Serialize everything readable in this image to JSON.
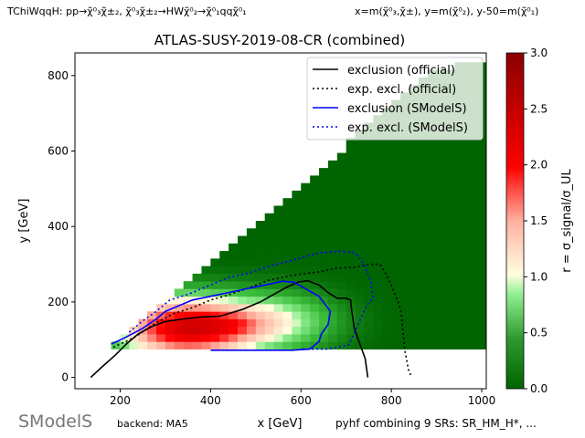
{
  "header": {
    "process_label": "TChiWqqH: pp→χ̃⁰₃χ̃±₂, χ̃⁰₃χ̃±₂→HWχ̃⁰₂→χ̃⁰₁qqχ̃⁰₁",
    "mass_definition": "x=m(χ̃⁰₃,χ̃±), y=m(χ̃⁰₂), y-50=m(χ̃⁰₁)"
  },
  "footer": {
    "logo_text": "SModelS",
    "backend": "backend: MA5",
    "combination": "pyhf combining 9 SRs: SR_HM_H*, ..."
  },
  "chart_data": {
    "type": "heatmap",
    "title": "ATLAS-SUSY-2019-08-CR (combined)",
    "xlabel": "x [GeV]",
    "ylabel": "y [GeV]",
    "xlim": [
      100,
      1010
    ],
    "ylim": [
      -30,
      860
    ],
    "xticks": [
      200,
      400,
      600,
      800,
      1000
    ],
    "yticks": [
      0,
      200,
      400,
      600,
      800
    ],
    "colorbar": {
      "label": "r = σ_signal/σ_UL",
      "range": [
        0.0,
        3.0
      ],
      "ticks": [
        "0.0",
        "0.5",
        "1.0",
        "1.5",
        "2.0",
        "2.5",
        "3.0"
      ],
      "colormap": [
        "#006400",
        "#90ee90",
        "#ffffe0",
        "#ff0000",
        "#8b0000"
      ]
    },
    "heatmap": {
      "x_start": 180,
      "x_step": 20,
      "y_start": 75,
      "y_step": 20,
      "diagonal_offset": 25,
      "max_y": [
        75,
        100,
        120,
        140,
        165,
        185,
        205,
        225,
        245,
        265,
        285,
        305,
        325,
        345,
        370,
        390,
        410,
        430,
        450,
        470,
        490,
        510,
        530,
        550,
        570,
        590,
        615,
        635,
        655,
        675,
        695,
        715,
        735,
        755,
        775,
        795,
        810,
        810,
        815,
        815,
        820,
        820
      ]
    },
    "series": [
      {
        "name": "exclusion (official)",
        "color": "#000000",
        "style": "solid",
        "points": [
          [
            135,
            0
          ],
          [
            160,
            28
          ],
          [
            190,
            60
          ],
          [
            215,
            90
          ],
          [
            240,
            115
          ],
          [
            270,
            135
          ],
          [
            300,
            148
          ],
          [
            340,
            155
          ],
          [
            380,
            160
          ],
          [
            420,
            162
          ],
          [
            470,
            180
          ],
          [
            510,
            200
          ],
          [
            540,
            220
          ],
          [
            570,
            240
          ],
          [
            595,
            253
          ],
          [
            615,
            256
          ],
          [
            640,
            245
          ],
          [
            660,
            225
          ],
          [
            680,
            210
          ],
          [
            700,
            210
          ],
          [
            710,
            205
          ],
          [
            712,
            180
          ],
          [
            718,
            130
          ],
          [
            730,
            90
          ],
          [
            742,
            50
          ],
          [
            748,
            0
          ]
        ]
      },
      {
        "name": "exp. excl. (official)",
        "color": "#000000",
        "style": "dotted",
        "points": [
          [
            185,
            80
          ],
          [
            230,
            105
          ],
          [
            280,
            145
          ],
          [
            320,
            170
          ],
          [
            360,
            185
          ],
          [
            400,
            205
          ],
          [
            430,
            215
          ],
          [
            480,
            235
          ],
          [
            530,
            258
          ],
          [
            580,
            270
          ],
          [
            640,
            280
          ],
          [
            680,
            290
          ],
          [
            720,
            292
          ],
          [
            750,
            300
          ],
          [
            775,
            300
          ],
          [
            790,
            270
          ],
          [
            805,
            230
          ],
          [
            815,
            200
          ],
          [
            822,
            170
          ],
          [
            825,
            130
          ],
          [
            830,
            70
          ],
          [
            838,
            20
          ],
          [
            845,
            0
          ]
        ]
      },
      {
        "name": "exclusion (SModelS)",
        "color": "#0000ff",
        "style": "solid",
        "points": [
          [
            180,
            88
          ],
          [
            210,
            105
          ],
          [
            250,
            130
          ],
          [
            280,
            155
          ],
          [
            300,
            175
          ],
          [
            330,
            190
          ],
          [
            360,
            205
          ],
          [
            400,
            215
          ],
          [
            440,
            225
          ],
          [
            480,
            235
          ],
          [
            520,
            245
          ],
          [
            560,
            255
          ],
          [
            585,
            252
          ],
          [
            610,
            235
          ],
          [
            640,
            215
          ],
          [
            665,
            175
          ],
          [
            660,
            140
          ],
          [
            645,
            115
          ],
          [
            640,
            95
          ],
          [
            620,
            75
          ],
          [
            580,
            72
          ],
          [
            500,
            72
          ],
          [
            440,
            72
          ],
          [
            400,
            72
          ]
        ]
      },
      {
        "name": "exp. excl. (SModelS)",
        "color": "#0000ff",
        "style": "dotted",
        "points": [
          [
            220,
            120
          ],
          [
            250,
            150
          ],
          [
            280,
            175
          ],
          [
            310,
            205
          ],
          [
            350,
            220
          ],
          [
            400,
            245
          ],
          [
            440,
            265
          ],
          [
            480,
            275
          ],
          [
            530,
            295
          ],
          [
            580,
            310
          ],
          [
            640,
            330
          ],
          [
            690,
            335
          ],
          [
            720,
            330
          ],
          [
            740,
            300
          ],
          [
            755,
            250
          ],
          [
            760,
            210
          ],
          [
            745,
            190
          ],
          [
            730,
            150
          ],
          [
            715,
            110
          ],
          [
            705,
            85
          ],
          [
            660,
            75
          ],
          [
            600,
            75
          ]
        ]
      }
    ],
    "legend": {
      "placement": "top-right"
    }
  }
}
